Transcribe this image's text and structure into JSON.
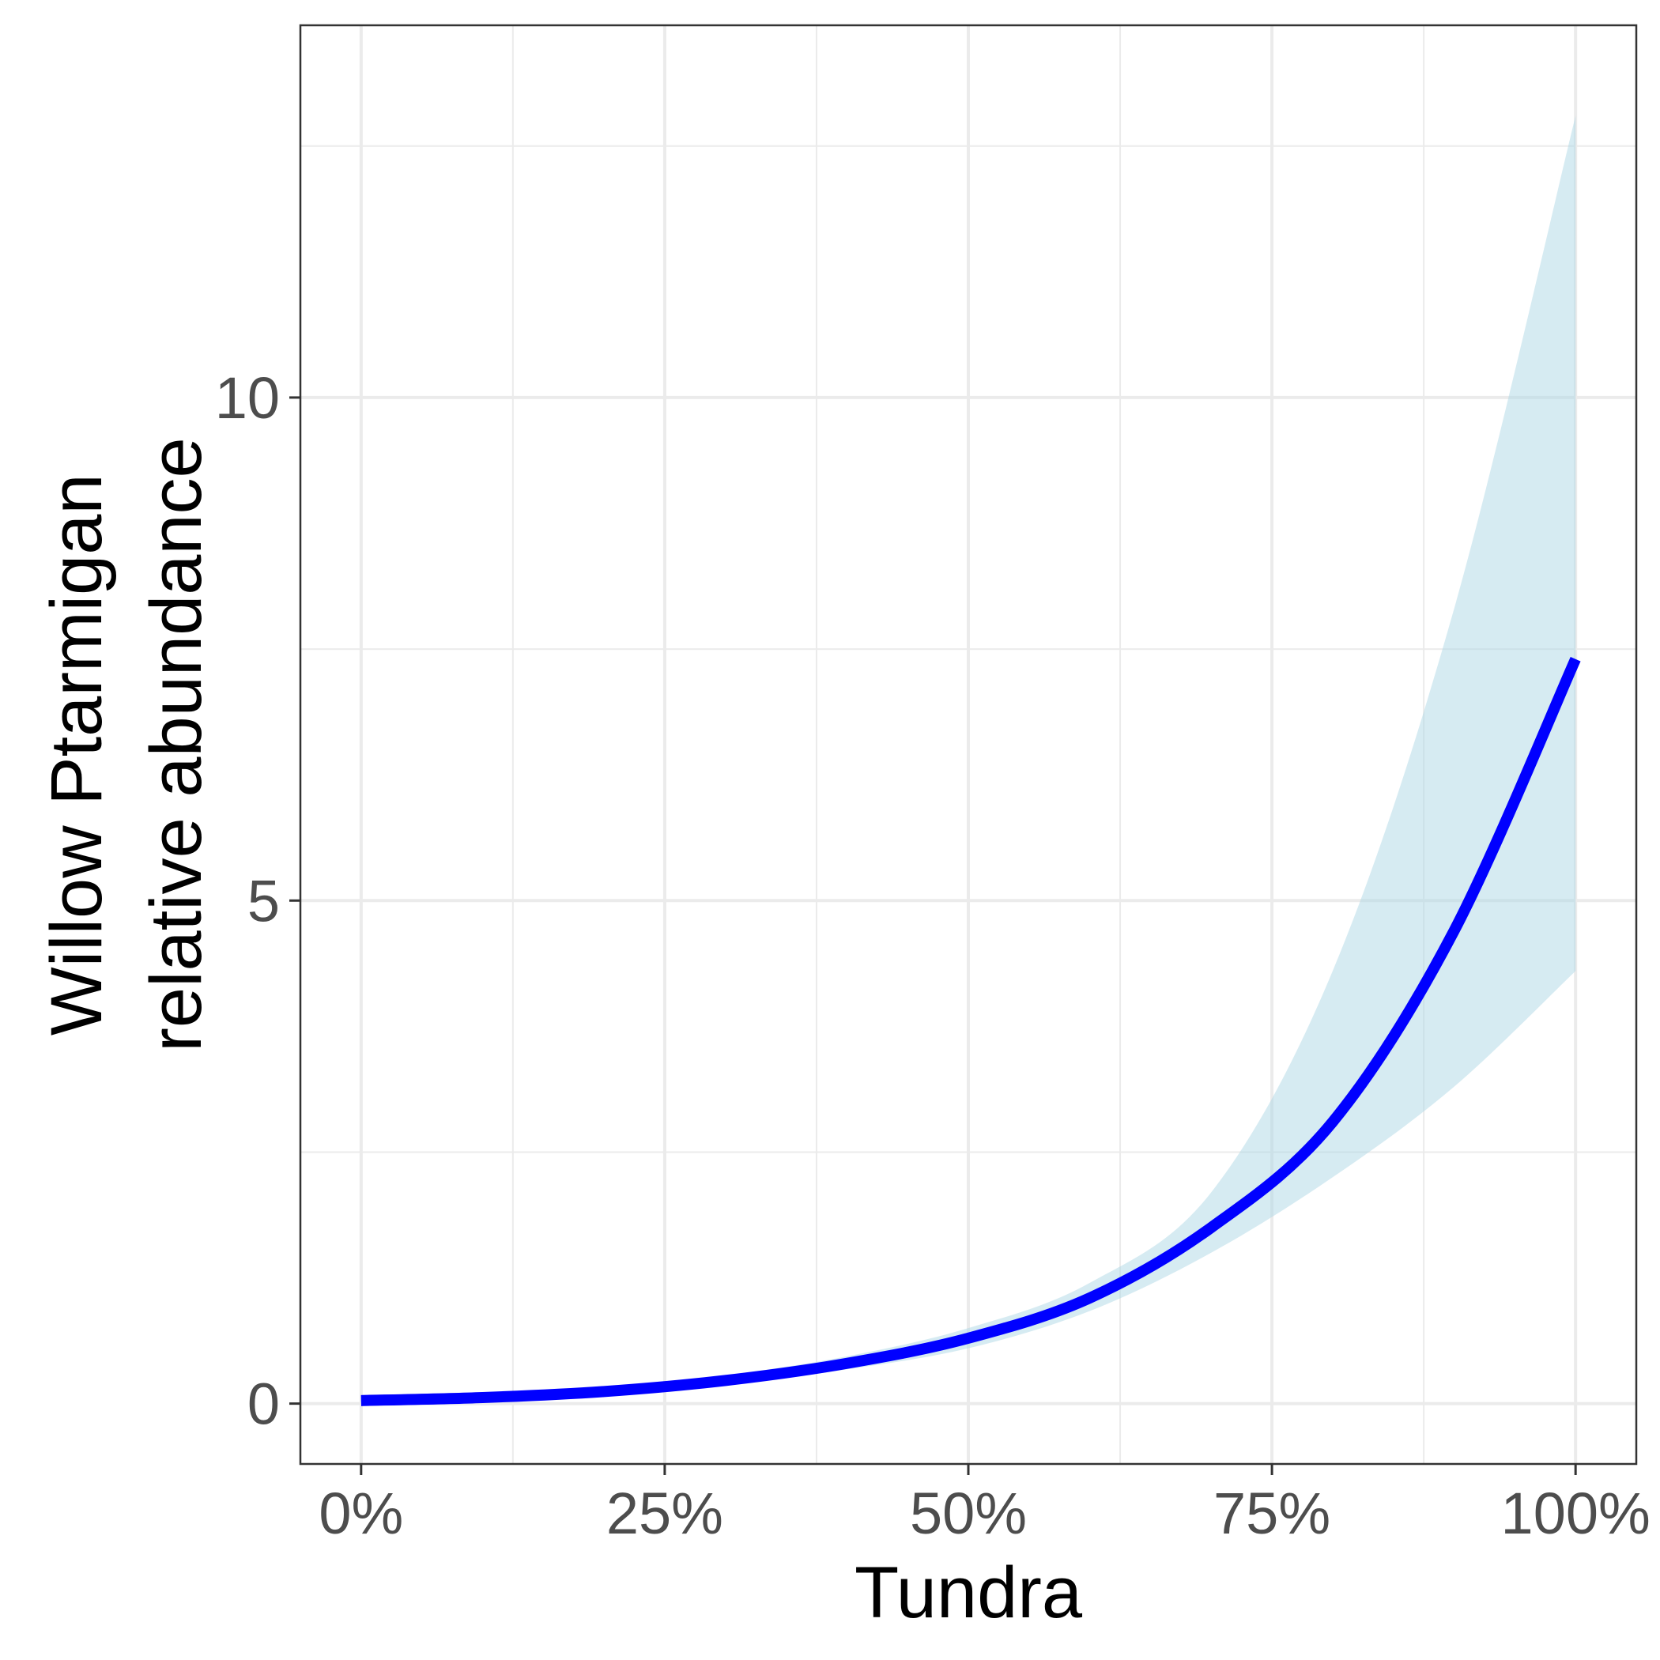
{
  "chart_data": {
    "type": "line",
    "title": "",
    "xlabel": "Tundra",
    "ylabel_lines": [
      "Willow Ptarmigan",
      "relative abundance"
    ],
    "xlim": [
      -0.05,
      1.05
    ],
    "ylim": [
      -0.6,
      13.7
    ],
    "x_ticks": [
      {
        "value": 0,
        "label": "0%"
      },
      {
        "value": 0.25,
        "label": "25%"
      },
      {
        "value": 0.5,
        "label": "50%"
      },
      {
        "value": 0.75,
        "label": "75%"
      },
      {
        "value": 1,
        "label": "100%"
      }
    ],
    "x_minor_ticks": [
      0.125,
      0.375,
      0.625,
      0.875
    ],
    "y_ticks": [
      {
        "value": 0,
        "label": "0"
      },
      {
        "value": 5,
        "label": "5"
      },
      {
        "value": 10,
        "label": "10"
      }
    ],
    "y_minor_ticks": [
      2.5,
      7.5,
      12.5
    ],
    "grid": true,
    "colors": {
      "line": "#0000ff",
      "ribbon": "#add8e6",
      "grid": "#ebebeb",
      "panel_border": "#333333"
    },
    "series": [
      {
        "x": [
          0,
          0.1,
          0.2,
          0.3,
          0.4,
          0.5,
          0.6,
          0.7,
          0.8,
          0.9,
          1.0
        ],
        "y": [
          0.03,
          0.06,
          0.12,
          0.23,
          0.4,
          0.65,
          1.05,
          1.75,
          2.8,
          4.7,
          7.4
        ],
        "lower": [
          0.02,
          0.05,
          0.1,
          0.19,
          0.34,
          0.55,
          0.92,
          1.5,
          2.25,
          3.15,
          4.3
        ],
        "upper": [
          0.04,
          0.08,
          0.15,
          0.28,
          0.47,
          0.75,
          1.2,
          2.1,
          4.3,
          7.9,
          12.8
        ]
      }
    ]
  }
}
